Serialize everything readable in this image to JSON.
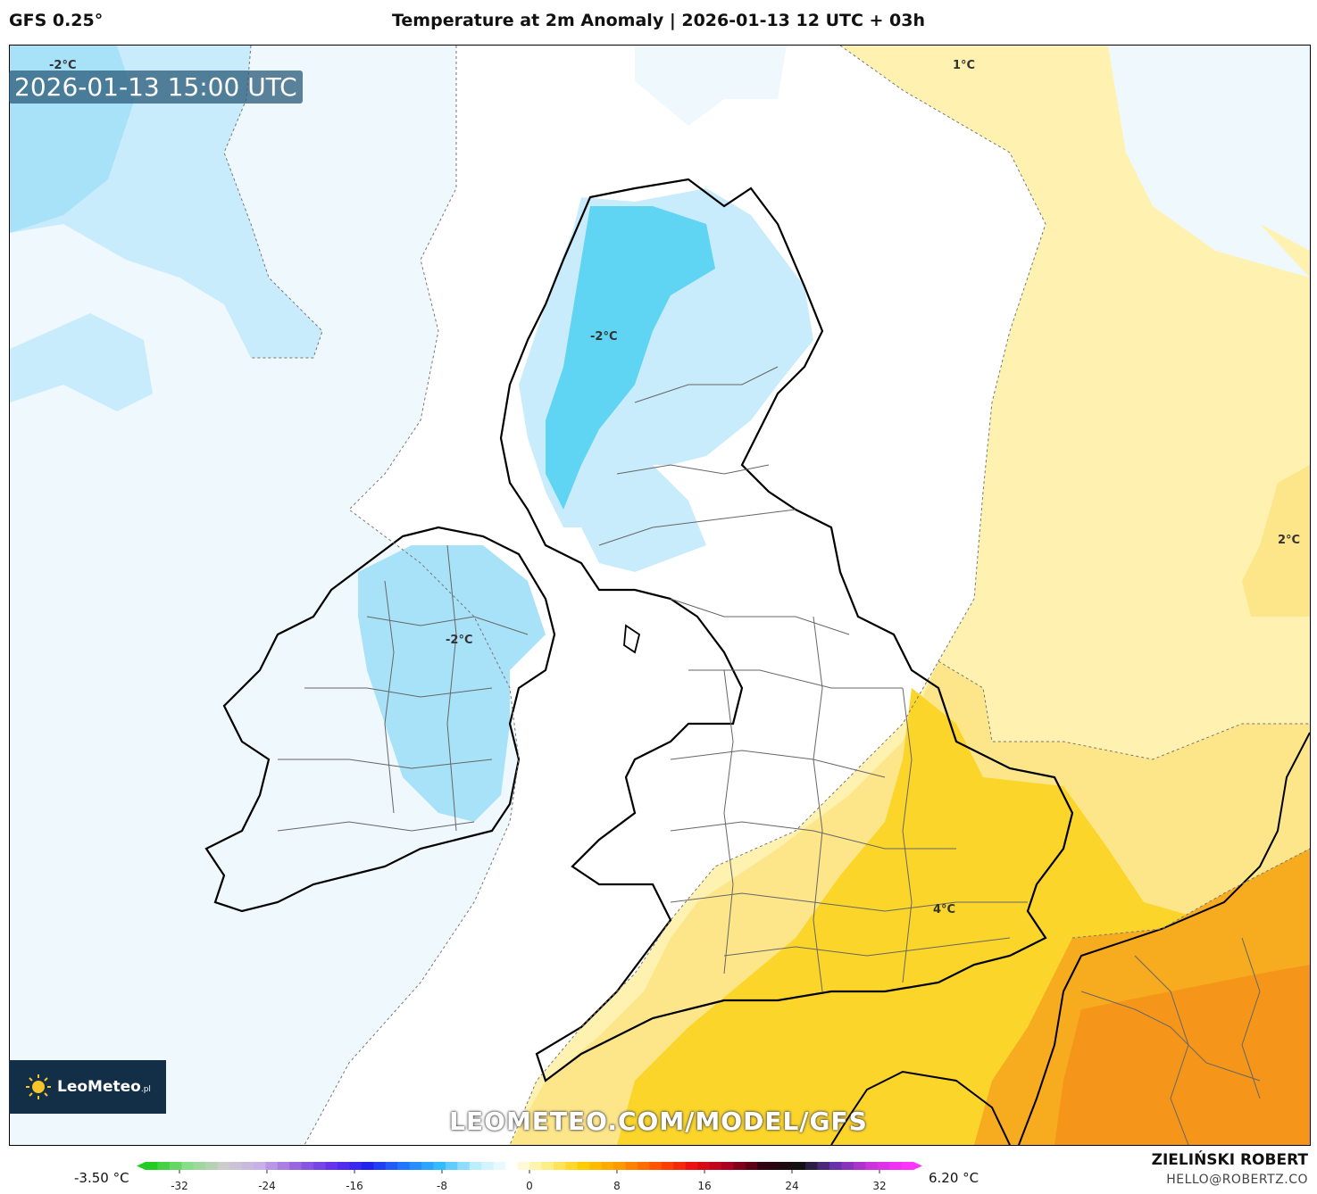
{
  "header": {
    "model": "GFS 0.25°",
    "title": "Temperature at 2m Anomaly | 2026-01-13 12 UTC + 03h"
  },
  "map": {
    "valid_time": "2026-01-13 15:00 UTC",
    "contour_labels": [
      "-2°C",
      "1°C",
      "-2°C",
      "2°C",
      "-2°C",
      "4°C"
    ],
    "colors": {
      "sea_cold_light": "#eef8fd",
      "cold_light": "#c8ecfb",
      "cold_mid": "#a8e2f8",
      "cold_strong": "#5fd4f3",
      "neutral": "#ffffff",
      "warm_light": "#fff6c4",
      "warm_mid": "#fde68a",
      "warm_yellow": "#fbd52a",
      "warm_orange": "#f7ab1f",
      "warm_deep": "#f5961a",
      "coastline": "#000000",
      "borders": "#555555"
    }
  },
  "branding": {
    "logo_text": "LeoMeteo",
    "logo_suffix": ".pl",
    "watermark": "LEOMETEO.COM/MODEL/GFS"
  },
  "colorbar": {
    "min_label": "-3.50 °C",
    "max_label": "6.20 °C",
    "ticks": [
      "-32",
      "-24",
      "-16",
      "-8",
      "0",
      "8",
      "16",
      "24",
      "32"
    ],
    "stops": [
      "#22cc22",
      "#88dd88",
      "#cccccc",
      "#c8b0e8",
      "#9966dd",
      "#6633ee",
      "#2222ee",
      "#2277ff",
      "#33bbff",
      "#bbeeff",
      "#ffffff",
      "#ffee88",
      "#ffcc00",
      "#ff9900",
      "#ff5500",
      "#ee1111",
      "#aa0022",
      "#330011",
      "#111111",
      "#6633aa",
      "#cc33dd",
      "#ff33ff"
    ]
  },
  "footer": {
    "author": "ZIELIŃSKI ROBERT",
    "email": "HELLO@ROBERTZ.CO"
  }
}
